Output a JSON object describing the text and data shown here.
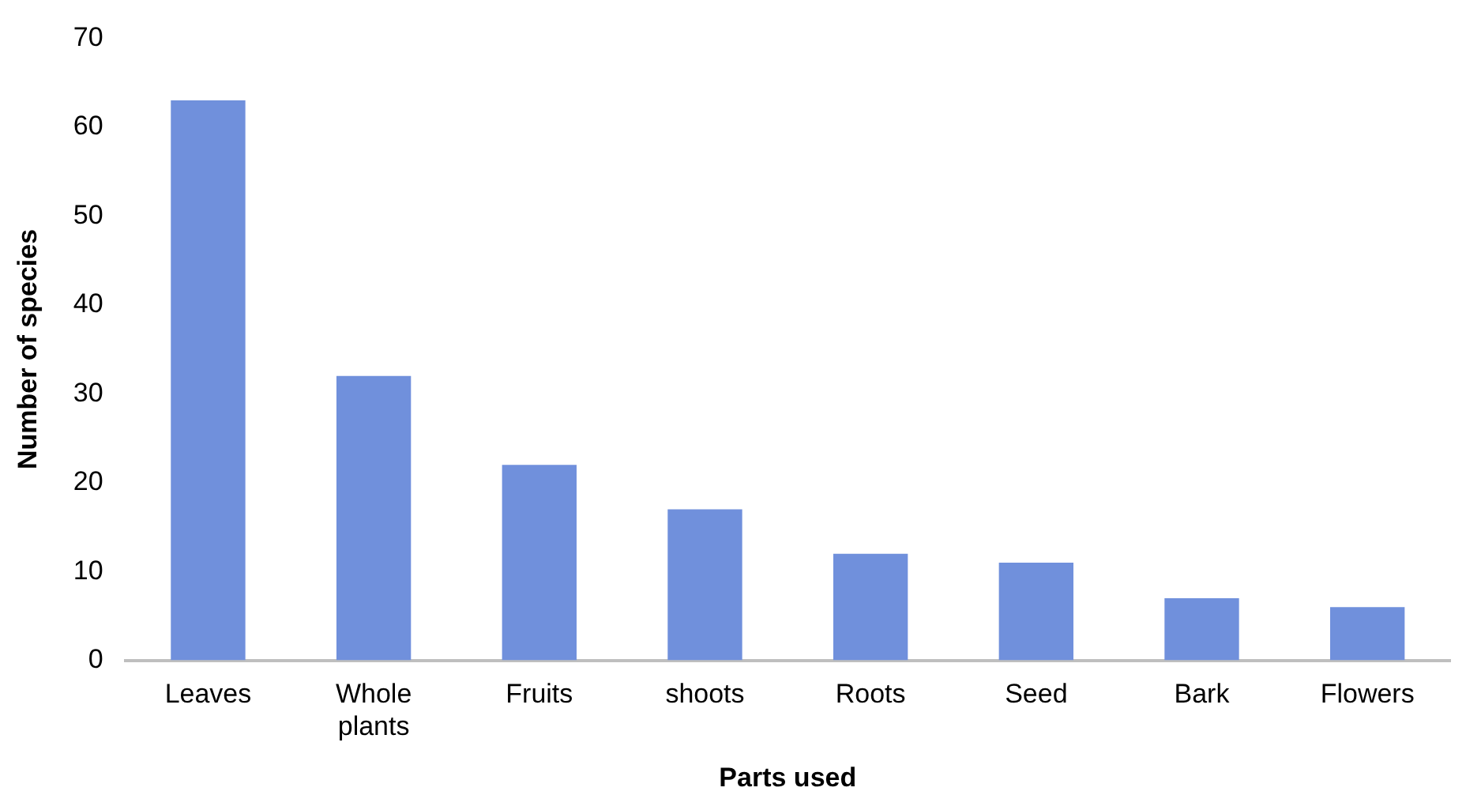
{
  "chart_data": {
    "type": "bar",
    "xlabel": "Parts used",
    "ylabel": "Number of species",
    "categories": [
      "Leaves",
      "Whole plants",
      "Fruits",
      "shoots",
      "Roots",
      "Seed",
      "Bark",
      "Flowers"
    ],
    "values": [
      63,
      32,
      22,
      17,
      12,
      11,
      7,
      6
    ],
    "color": "#7090dc",
    "ylim": [
      0,
      70
    ],
    "yticks": [
      0,
      10,
      20,
      30,
      40,
      50,
      60,
      70
    ],
    "grid": false,
    "legend": false
  }
}
